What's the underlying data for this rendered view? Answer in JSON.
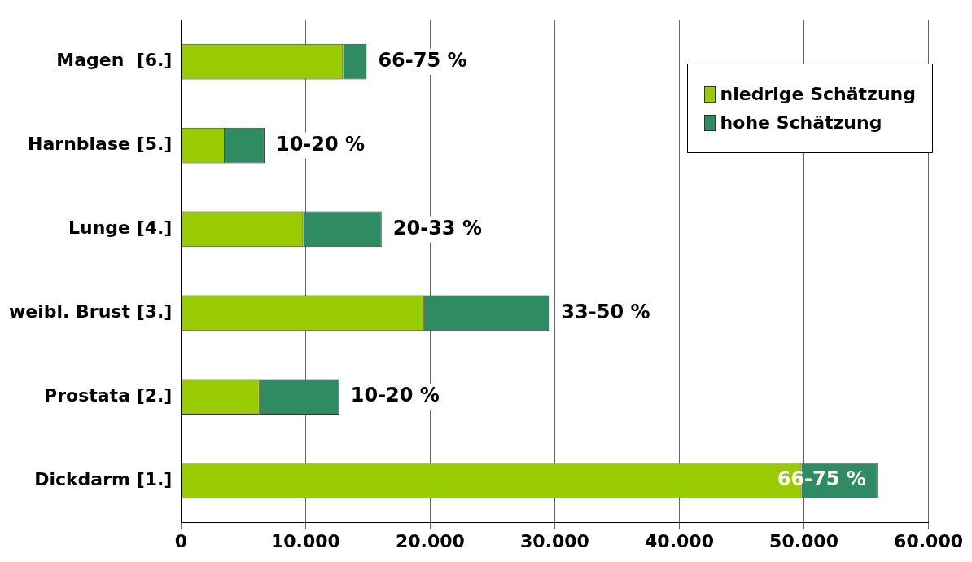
{
  "chart_data": {
    "type": "bar",
    "orientation": "horizontal",
    "stacked": true,
    "categories": [
      "Magen  [6.]",
      "Harnblase [5.]",
      "Lunge [4.]",
      "weibl. Brust [3.]",
      "Prostata [2.]",
      "Dickdarm [1.]"
    ],
    "series": [
      {
        "name": "niedrige Schätzung",
        "color": "#99cc00",
        "values": [
          13000,
          3500,
          9800,
          19500,
          6300,
          49800
        ]
      },
      {
        "name": "hohe Schätzung",
        "color": "#2e8b62",
        "values": [
          1900,
          3200,
          6300,
          10100,
          6400,
          6100
        ]
      }
    ],
    "annotations": [
      {
        "text": "66-75 %",
        "x": 14900,
        "y": "Magen  [6.]"
      },
      {
        "text": "10-20 %",
        "x": 6700,
        "y": "Harnblase [5.]"
      },
      {
        "text": "20-33 %",
        "x": 16100,
        "y": "Lunge [4.]"
      },
      {
        "text": "33-50 %",
        "x": 29600,
        "y": "weibl. Brust [3.]"
      },
      {
        "text": "10-20 %",
        "x": 12700,
        "y": "Prostata [2.]"
      },
      {
        "text": "66-75 %",
        "x": 55900,
        "y": "Dickdarm [1.]"
      }
    ],
    "xlim": [
      0,
      60000
    ],
    "xticks": [
      {
        "value": 0,
        "label": "0"
      },
      {
        "value": 10000,
        "label": "10.000"
      },
      {
        "value": 20000,
        "label": "20.000"
      },
      {
        "value": 30000,
        "label": "30.000"
      },
      {
        "value": 40000,
        "label": "40.000"
      },
      {
        "value": 50000,
        "label": "50.000"
      },
      {
        "value": 60000,
        "label": "60.000"
      }
    ],
    "grid": "x",
    "legend": "top right"
  }
}
